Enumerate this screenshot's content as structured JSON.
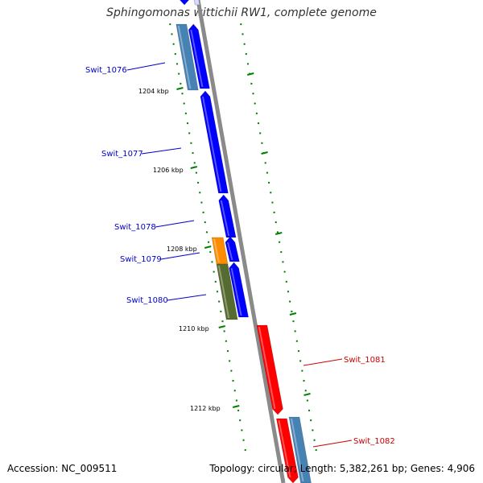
{
  "title": "Sphingomonas wittichii RW1, complete genome",
  "footer": {
    "accession": "Accession: NC_009511",
    "summary": "Topology: circular; Length: 5,382,261 bp; Genes: 4,906"
  },
  "colors": {
    "backbone": "#8a8a8a",
    "blue": "#0000ff",
    "steel": "#4682b4",
    "orange": "#ff8c00",
    "olive": "#556b2f",
    "red": "#ff0000",
    "tick": "#008000",
    "label_forward": "#0000cc",
    "label_reverse": "#cc0000"
  },
  "scale": {
    "ticks": [
      {
        "label": "1204 kbp"
      },
      {
        "label": "1206 kbp"
      },
      {
        "label": "1208 kbp"
      },
      {
        "label": "1210 kbp"
      },
      {
        "label": "1212 kbp"
      }
    ]
  },
  "gene_labels": [
    {
      "label": "Swit_1076",
      "strand": "forward"
    },
    {
      "label": "Swit_1077",
      "strand": "forward"
    },
    {
      "label": "Swit_1078",
      "strand": "forward"
    },
    {
      "label": "Swit_1079",
      "strand": "forward"
    },
    {
      "label": "Swit_1080",
      "strand": "forward"
    },
    {
      "label": "Swit_1081",
      "strand": "reverse"
    },
    {
      "label": "Swit_1082",
      "strand": "reverse"
    }
  ]
}
